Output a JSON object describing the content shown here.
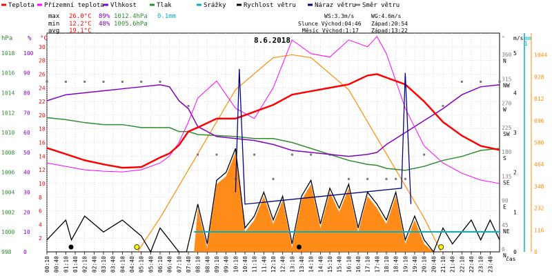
{
  "chart_data": {
    "type": "line",
    "title": "8.6.2018",
    "xlabel": "čas",
    "legend": [
      {
        "name": "Teplota",
        "color": "#ff0000"
      },
      {
        "name": "Přízemní teplota",
        "color": "#ff00ff"
      },
      {
        "name": "Vlhkost",
        "color": "#8000c0"
      },
      {
        "name": "Tlak",
        "color": "#2e8b2e"
      },
      {
        "name": "Srážky",
        "color": "#00b0c8"
      },
      {
        "name": "Rychlost větru",
        "color": "#000000"
      },
      {
        "name": "Náraz větru",
        "color": "#000080"
      },
      {
        "name": "Směr větru",
        "color": "#808080"
      }
    ],
    "stats": {
      "max": {
        "label": "max",
        "temp": "26.0°C",
        "hum": "89%",
        "press": "1012.4hPa",
        "rain": "0.1mm"
      },
      "min": {
        "label": "min",
        "temp": "12.2°C",
        "hum": "48%",
        "press": "1005.6hPa"
      },
      "avg": {
        "label": "avg",
        "temp": "19.1°C"
      }
    },
    "info": {
      "ws": "WS:3.3m/s",
      "wg": "WG:4.6m/s",
      "sun": "Slunce Východ:04:46",
      "sun_set": "Západ:20:54",
      "moon": "Měsíc Východ:1:17",
      "moon_set": "Západ:13:22"
    },
    "axes": {
      "hpa": {
        "unit": "hPa",
        "ticks": [
          998,
          1000,
          1002,
          1004,
          1006,
          1008,
          1010,
          1012,
          1014,
          1016,
          1018
        ],
        "range": [
          998,
          1020
        ]
      },
      "pct": {
        "unit": "%",
        "ticks": [
          0,
          10,
          20,
          30,
          40,
          50,
          60,
          70,
          80,
          90,
          100
        ],
        "range": [
          0,
          110
        ]
      },
      "temp": {
        "unit": "°C",
        "ticks": [
          2,
          4,
          6,
          8,
          10,
          12,
          14,
          16,
          18,
          20,
          22,
          24,
          26,
          28,
          30
        ],
        "range": [
          0,
          32
        ]
      },
      "dir": {
        "unit": "°",
        "ticks": [
          "0",
          "45",
          "90",
          "135",
          "180",
          "225",
          "270",
          "315",
          "360"
        ],
        "names": [
          "N",
          "NE",
          "E",
          "SE",
          "S",
          "SW",
          "W",
          "NW",
          "N"
        ]
      },
      "ms": {
        "unit": "m/s",
        "ticks": [
          0,
          1,
          2,
          3,
          4,
          5
        ]
      },
      "rain": {
        "unit": "mm",
        "ticks": [
          "0",
          "1"
        ]
      },
      "solar": {
        "ticks": [
          0,
          116,
          232,
          348,
          464,
          580,
          696,
          812,
          928,
          1044
        ]
      }
    },
    "x_ticks": [
      "00:10",
      "00:40",
      "01:10",
      "01:40",
      "02:10",
      "02:40",
      "03:10",
      "03:40",
      "04:10",
      "04:40",
      "05:10",
      "05:40",
      "06:10",
      "06:40",
      "07:10",
      "07:40",
      "08:10",
      "08:40",
      "09:10",
      "09:40",
      "10:10",
      "10:40",
      "11:10",
      "11:40",
      "12:10",
      "12:40",
      "13:10",
      "13:40",
      "14:10",
      "14:40",
      "15:10",
      "15:40",
      "16:10",
      "16:40",
      "17:10",
      "17:40",
      "18:10",
      "18:40",
      "19:10",
      "19:40",
      "20:10",
      "20:40",
      "21:10",
      "21:40",
      "22:10",
      "22:40",
      "23:10",
      "23:40"
    ],
    "series": [
      {
        "name": "Teplota",
        "x": [
          0,
          1,
          2,
          3,
          4,
          5,
          6,
          6.5,
          7,
          7.5,
          8,
          9,
          10,
          11,
          12,
          13,
          14,
          15,
          16,
          17,
          17.5,
          18,
          19,
          20,
          21,
          22,
          23,
          24
        ],
        "values": [
          15.2,
          14.3,
          13.4,
          12.8,
          12.3,
          12.4,
          13.8,
          14.4,
          15.6,
          17.6,
          18.2,
          19.5,
          19.5,
          20.5,
          21.5,
          23.0,
          23.5,
          24.0,
          24.5,
          25.8,
          26.0,
          25.5,
          24.5,
          22.0,
          19.0,
          17.0,
          15.5,
          14.9
        ]
      },
      {
        "name": "Přízemní teplota",
        "x": [
          0,
          1,
          2,
          3,
          4,
          5,
          6,
          6.5,
          7,
          7.5,
          8,
          9,
          10,
          11,
          12,
          13,
          14,
          15,
          16,
          17,
          17.5,
          18,
          19,
          20,
          21,
          22,
          23,
          24
        ],
        "values": [
          13.0,
          12.5,
          12.0,
          11.8,
          11.7,
          12.0,
          13.0,
          14.0,
          16.0,
          19.0,
          22.5,
          25.0,
          21.0,
          19.5,
          24.0,
          31.0,
          29.0,
          28.5,
          31.0,
          30.0,
          31.5,
          29.0,
          21.0,
          15.5,
          13.0,
          11.5,
          10.5,
          10.0
        ]
      },
      {
        "name": "Vlhkost",
        "x": [
          0,
          1,
          2,
          3,
          4,
          5,
          6,
          6.5,
          7,
          7.5,
          8,
          9,
          10,
          11,
          12,
          13,
          14,
          15,
          16,
          17,
          17.5,
          18,
          19,
          20,
          21,
          22,
          23,
          24
        ],
        "values": [
          76,
          79,
          80,
          81,
          82,
          83,
          84,
          83,
          76,
          72,
          63,
          58,
          57,
          56,
          54,
          51,
          50,
          49,
          48,
          49,
          50,
          54,
          60,
          66,
          72,
          79,
          83,
          84
        ]
      },
      {
        "name": "Tlak",
        "x": [
          0,
          1,
          2,
          3,
          4,
          5,
          6,
          6.5,
          7,
          7.5,
          8,
          9,
          10,
          11,
          12,
          13,
          14,
          15,
          16,
          17,
          17.5,
          18,
          19,
          20,
          21,
          22,
          23,
          24
        ],
        "values": [
          1011.5,
          1011.3,
          1011.0,
          1010.8,
          1010.8,
          1010.5,
          1010.5,
          1010.5,
          1010.1,
          1010.1,
          1009.8,
          1009.7,
          1009.6,
          1009.4,
          1009.4,
          1009.0,
          1008.4,
          1007.8,
          1007.2,
          1006.8,
          1006.7,
          1006.4,
          1006.2,
          1006.6,
          1007.2,
          1007.6,
          1008.2,
          1008.4
        ]
      },
      {
        "name": "Solar",
        "x": [
          4.8,
          6,
          8,
          10,
          12,
          13,
          14,
          16,
          18,
          20,
          20.9
        ],
        "values": [
          0,
          180,
          520,
          860,
          1030,
          1045,
          1030,
          860,
          520,
          180,
          0
        ]
      },
      {
        "name": "Rychlost větru",
        "x": [
          0,
          1,
          1.3,
          2,
          3,
          4,
          5,
          5.5,
          6,
          7,
          7.4,
          8,
          8.5,
          9,
          9.5,
          10,
          10.5,
          11,
          11.5,
          12,
          12.5,
          13,
          13.5,
          14,
          14.5,
          15,
          15.5,
          16,
          16.5,
          17,
          17.5,
          18,
          18.5,
          19,
          19.5,
          20,
          20.5,
          21,
          21.5,
          22,
          22.5,
          23,
          23.5,
          24
        ],
        "values": [
          0.3,
          0.8,
          0.3,
          0.9,
          0.5,
          0.8,
          0.4,
          0.0,
          0.6,
          0.0,
          0.0,
          1.2,
          0.2,
          1.8,
          2.0,
          2.6,
          0.6,
          0.9,
          1.5,
          0.8,
          1.4,
          0.2,
          1.4,
          1.8,
          0.7,
          1.6,
          1.1,
          1.7,
          0.6,
          1.5,
          1.2,
          0.8,
          1.5,
          0.3,
          0.9,
          0.3,
          0.0,
          0.6,
          0.2,
          0.5,
          0.8,
          0.3,
          0.8,
          0.3
        ]
      },
      {
        "name": "Náraz větru",
        "x": [
          10.0,
          10.2,
          10.5,
          18.8,
          19.0,
          19.3
        ],
        "values": [
          1.5,
          4.6,
          1.2,
          1.6,
          4.5,
          1.2
        ]
      },
      {
        "name": "Srážky",
        "x": [
          7.8,
          24
        ],
        "values": [
          0.1,
          0.1
        ]
      }
    ]
  }
}
